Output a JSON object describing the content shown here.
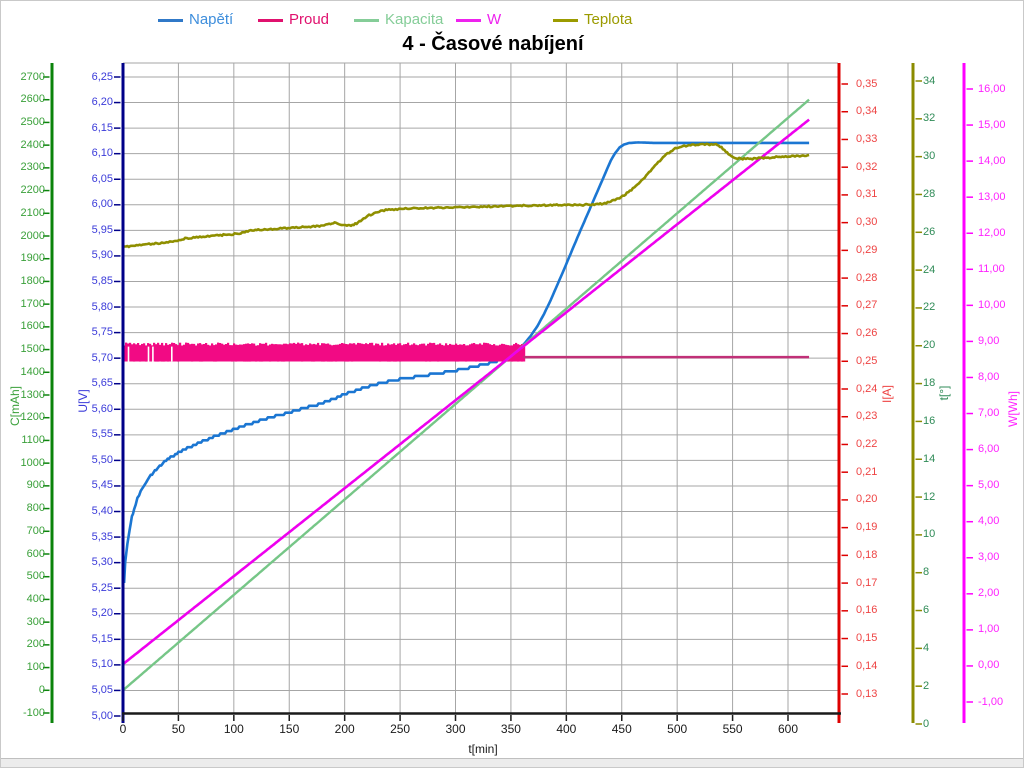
{
  "title": "4 - Časové nabíjení",
  "legend": {
    "items": [
      {
        "label": "Napětí",
        "color": "#3079C8",
        "text_color": "#3E8EDC"
      },
      {
        "label": "Proud",
        "color": "#E0116E",
        "text_color": "#E0116E"
      },
      {
        "label": "Kapacita",
        "color": "#85CD98",
        "text_color": "#85CD98"
      },
      {
        "label": "W",
        "color": "#EE22EE",
        "text_color": "#EE22EE"
      },
      {
        "label": "Teplota",
        "color": "#9B9B00",
        "text_color": "#9B9B00"
      }
    ]
  },
  "axes": {
    "x": {
      "label": "t[min]",
      "min": 0,
      "max": 645,
      "line_color": "#1a1a1a",
      "text_color": "#1a1a1a",
      "tick_values": [
        0,
        50,
        100,
        150,
        200,
        250,
        300,
        350,
        400,
        450,
        500,
        550,
        600
      ],
      "tick_labels": [
        "0",
        "50",
        "100",
        "150",
        "200",
        "250",
        "300",
        "350",
        "400",
        "450",
        "500",
        "550",
        "600"
      ]
    },
    "c": {
      "label": "C[mAh]",
      "min": -100,
      "max": 2700,
      "line_color": "#0B830B",
      "text_color": "#3AA03A",
      "tick_values": [
        2700,
        2600,
        2500,
        2400,
        2300,
        2200,
        2100,
        2000,
        1900,
        1800,
        1700,
        1600,
        1500,
        1400,
        1300,
        1200,
        1100,
        1000,
        900,
        800,
        700,
        600,
        500,
        400,
        300,
        200,
        100,
        0,
        -100
      ],
      "tick_labels": [
        "2700",
        "2600",
        "2500",
        "2400",
        "2300",
        "2200",
        "2100",
        "2000",
        "1900",
        "1800",
        "1700",
        "1600",
        "1500",
        "1400",
        "1300",
        "1200",
        "1100",
        "1000",
        "900",
        "800",
        "700",
        "600",
        "500",
        "400",
        "300",
        "200",
        "100",
        "0",
        "-100"
      ]
    },
    "u": {
      "label": "U[V]",
      "min": 5.0,
      "max": 6.25,
      "line_color": "#000089",
      "text_color": "#3B3BD9",
      "tick_values": [
        6.25,
        6.2,
        6.15,
        6.1,
        6.05,
        6.0,
        5.95,
        5.9,
        5.85,
        5.8,
        5.75,
        5.7,
        5.65,
        5.6,
        5.55,
        5.5,
        5.45,
        5.4,
        5.35,
        5.3,
        5.25,
        5.2,
        5.15,
        5.1,
        5.05,
        5.0
      ],
      "tick_labels": [
        "6,25",
        "6,20",
        "6,15",
        "6,10",
        "6,05",
        "6,00",
        "5,95",
        "5,90",
        "5,85",
        "5,80",
        "5,75",
        "5,70",
        "5,65",
        "5,60",
        "5,55",
        "5,50",
        "5,45",
        "5,40",
        "5,35",
        "5,30",
        "5,25",
        "5,20",
        "5,15",
        "5,10",
        "5,05",
        "5,00"
      ]
    },
    "i": {
      "label": "I[A]",
      "min": 0.13,
      "max": 0.35,
      "line_color": "#DD0000",
      "text_color": "#EE4444",
      "tick_values": [
        0.35,
        0.34,
        0.33,
        0.32,
        0.31,
        0.3,
        0.29,
        0.28,
        0.27,
        0.26,
        0.25,
        0.24,
        0.23,
        0.22,
        0.21,
        0.2,
        0.19,
        0.18,
        0.17,
        0.16,
        0.15,
        0.14,
        0.13
      ],
      "tick_labels": [
        "0,35",
        "0,34",
        "0,33",
        "0,32",
        "0,31",
        "0,30",
        "0,29",
        "0,28",
        "0,27",
        "0,26",
        "0,25",
        "0,24",
        "0,23",
        "0,22",
        "0,21",
        "0,20",
        "0,19",
        "0,18",
        "0,17",
        "0,16",
        "0,15",
        "0,14",
        "0,13"
      ]
    },
    "t": {
      "label": "t[°]",
      "min": 0,
      "max": 34,
      "line_color": "#8B8B00",
      "text_color": "#2F8B57",
      "tick_values": [
        34,
        32,
        30,
        28,
        26,
        24,
        22,
        20,
        18,
        16,
        14,
        12,
        10,
        8,
        6,
        4,
        2,
        0
      ],
      "tick_labels": [
        "34",
        "32",
        "30",
        "28",
        "26",
        "24",
        "22",
        "20",
        "18",
        "16",
        "14",
        "12",
        "10",
        "8",
        "6",
        "4",
        "2",
        "0"
      ]
    },
    "w": {
      "label": "W[Wh]",
      "min": -1.0,
      "max": 16.0,
      "line_color": "#FF00FF",
      "text_color": "#FF22FF",
      "tick_values": [
        16,
        15,
        14,
        13,
        12,
        11,
        10,
        9,
        8,
        7,
        6,
        5,
        4,
        3,
        2,
        1,
        0,
        -1
      ],
      "tick_labels": [
        "16,00",
        "15,00",
        "14,00",
        "13,00",
        "12,00",
        "11,00",
        "10,00",
        "9,00",
        "8,00",
        "7,00",
        "6,00",
        "5,00",
        "4,00",
        "3,00",
        "2,00",
        "1,00",
        "0,00",
        "-1,00"
      ]
    }
  },
  "chart_data": {
    "type": "line",
    "title": "4 - Časové nabíjení",
    "xlabel": "t[min]",
    "grid": true,
    "legend_position": "top",
    "series": [
      {
        "name": "Napětí",
        "axis": "u",
        "unit": "V",
        "color": "#1B76D2",
        "points": [
          [
            1,
            5.26
          ],
          [
            2,
            5.3
          ],
          [
            4,
            5.335
          ],
          [
            6,
            5.365
          ],
          [
            8,
            5.39
          ],
          [
            10,
            5.405
          ],
          [
            13,
            5.425
          ],
          [
            16,
            5.44
          ],
          [
            20,
            5.455
          ],
          [
            25,
            5.47
          ],
          [
            30,
            5.483
          ],
          [
            36,
            5.495
          ],
          [
            43,
            5.506
          ],
          [
            50,
            5.515
          ],
          [
            58,
            5.524
          ],
          [
            66,
            5.532
          ],
          [
            75,
            5.54
          ],
          [
            85,
            5.549
          ],
          [
            95,
            5.557
          ],
          [
            105,
            5.565
          ],
          [
            115,
            5.572
          ],
          [
            125,
            5.579
          ],
          [
            135,
            5.585
          ],
          [
            145,
            5.591
          ],
          [
            155,
            5.597
          ],
          [
            165,
            5.603
          ],
          [
            175,
            5.609
          ],
          [
            185,
            5.616
          ],
          [
            195,
            5.625
          ],
          [
            206,
            5.634
          ],
          [
            220,
            5.644
          ],
          [
            235,
            5.652
          ],
          [
            250,
            5.659
          ],
          [
            265,
            5.664
          ],
          [
            280,
            5.669
          ],
          [
            295,
            5.674
          ],
          [
            310,
            5.68
          ],
          [
            325,
            5.687
          ],
          [
            337,
            5.694
          ],
          [
            348,
            5.704
          ],
          [
            355,
            5.714
          ],
          [
            362,
            5.728
          ],
          [
            368,
            5.744
          ],
          [
            374,
            5.763
          ],
          [
            380,
            5.787
          ],
          [
            386,
            5.814
          ],
          [
            392,
            5.844
          ],
          [
            398,
            5.874
          ],
          [
            404,
            5.905
          ],
          [
            410,
            5.936
          ],
          [
            416,
            5.966
          ],
          [
            422,
            5.996
          ],
          [
            428,
            6.026
          ],
          [
            434,
            6.056
          ],
          [
            440,
            6.086
          ],
          [
            444,
            6.101
          ],
          [
            448,
            6.112
          ],
          [
            452,
            6.118
          ],
          [
            457,
            6.121
          ],
          [
            465,
            6.122
          ],
          [
            480,
            6.121
          ],
          [
            619,
            6.121
          ]
        ]
      },
      {
        "name": "Proud",
        "axis": "i",
        "unit": "A",
        "color": "#E0116E",
        "band_color": "#F20A84",
        "line_color": "#C13078",
        "noisy_band": {
          "t_start": 0,
          "t_end": 361,
          "center": 0.2535,
          "halfwidth": 0.0028,
          "gap_times": [
            5,
            23,
            27,
            44
          ]
        },
        "steady_line": {
          "t_start": 361,
          "t_end": 619,
          "value": 0.2515
        }
      },
      {
        "name": "Kapacita",
        "axis": "c",
        "unit": "mAh",
        "color": "#76C687",
        "points": [
          [
            0,
            0
          ],
          [
            619,
            2600
          ]
        ]
      },
      {
        "name": "W",
        "axis": "w",
        "unit": "Wh",
        "color": "#EE00EE",
        "points": [
          [
            0,
            0.05
          ],
          [
            619,
            15.15
          ]
        ]
      },
      {
        "name": "Teplota",
        "axis": "t",
        "unit": "°C",
        "color": "#8F8F00",
        "points": [
          [
            0,
            25.2
          ],
          [
            8,
            25.28
          ],
          [
            15,
            25.32
          ],
          [
            25,
            25.38
          ],
          [
            35,
            25.44
          ],
          [
            45,
            25.5
          ],
          [
            52,
            25.58
          ],
          [
            56,
            25.68
          ],
          [
            65,
            25.73
          ],
          [
            75,
            25.78
          ],
          [
            85,
            25.83
          ],
          [
            95,
            25.88
          ],
          [
            105,
            25.93
          ],
          [
            110,
            26.0
          ],
          [
            114,
            26.1
          ],
          [
            122,
            26.13
          ],
          [
            132,
            26.17
          ],
          [
            142,
            26.2
          ],
          [
            152,
            26.24
          ],
          [
            162,
            26.28
          ],
          [
            172,
            26.31
          ],
          [
            180,
            26.35
          ],
          [
            186,
            26.45
          ],
          [
            191,
            26.5
          ],
          [
            196,
            26.42
          ],
          [
            202,
            26.36
          ],
          [
            207,
            26.38
          ],
          [
            212,
            26.5
          ],
          [
            217,
            26.72
          ],
          [
            222,
            26.9
          ],
          [
            228,
            27.05
          ],
          [
            234,
            27.15
          ],
          [
            240,
            27.2
          ],
          [
            252,
            27.24
          ],
          [
            264,
            27.27
          ],
          [
            276,
            27.29
          ],
          [
            290,
            27.31
          ],
          [
            305,
            27.33
          ],
          [
            320,
            27.35
          ],
          [
            340,
            27.38
          ],
          [
            360,
            27.41
          ],
          [
            380,
            27.43
          ],
          [
            400,
            27.44
          ],
          [
            415,
            27.45
          ],
          [
            428,
            27.48
          ],
          [
            436,
            27.55
          ],
          [
            444,
            27.7
          ],
          [
            452,
            27.95
          ],
          [
            460,
            28.3
          ],
          [
            468,
            28.75
          ],
          [
            476,
            29.25
          ],
          [
            483,
            29.7
          ],
          [
            490,
            30.1
          ],
          [
            497,
            30.4
          ],
          [
            505,
            30.55
          ],
          [
            515,
            30.63
          ],
          [
            525,
            30.65
          ],
          [
            535,
            30.63
          ],
          [
            540,
            30.5
          ],
          [
            545,
            30.2
          ],
          [
            550,
            29.98
          ],
          [
            556,
            29.9
          ],
          [
            565,
            29.88
          ],
          [
            575,
            29.92
          ],
          [
            585,
            29.96
          ],
          [
            595,
            30.0
          ],
          [
            605,
            30.02
          ],
          [
            619,
            30.08
          ]
        ]
      }
    ]
  }
}
